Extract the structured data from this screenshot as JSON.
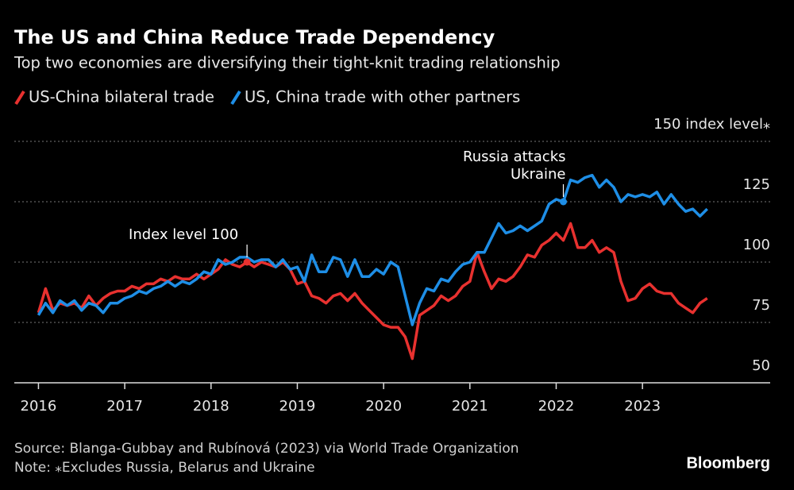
{
  "chart_data": {
    "type": "line",
    "title": "The US and China Reduce Trade Dependency",
    "subtitle": "Top two economies are diversifying their tight-knit trading relationship",
    "x": [
      2016,
      2016.083,
      2016.167,
      2016.25,
      2016.333,
      2016.417,
      2016.5,
      2016.583,
      2016.667,
      2016.75,
      2016.833,
      2016.917,
      2017,
      2017.083,
      2017.167,
      2017.25,
      2017.333,
      2017.417,
      2017.5,
      2017.583,
      2017.667,
      2017.75,
      2017.833,
      2017.917,
      2018,
      2018.083,
      2018.167,
      2018.25,
      2018.333,
      2018.417,
      2018.5,
      2018.583,
      2018.667,
      2018.75,
      2018.833,
      2018.917,
      2019,
      2019.083,
      2019.167,
      2019.25,
      2019.333,
      2019.417,
      2019.5,
      2019.583,
      2019.667,
      2019.75,
      2019.833,
      2019.917,
      2020,
      2020.083,
      2020.167,
      2020.25,
      2020.333,
      2020.417,
      2020.5,
      2020.583,
      2020.667,
      2020.75,
      2020.833,
      2020.917,
      2021,
      2021.083,
      2021.167,
      2021.25,
      2021.333,
      2021.417,
      2021.5,
      2021.583,
      2021.667,
      2021.75,
      2021.833,
      2021.917,
      2022,
      2022.083,
      2022.167,
      2022.25,
      2022.333,
      2022.417,
      2022.5,
      2022.583,
      2022.667,
      2022.75,
      2022.833,
      2022.917,
      2023,
      2023.083,
      2023.167,
      2023.25,
      2023.333,
      2023.417,
      2023.5,
      2023.583,
      2023.667,
      2023.75
    ],
    "series": [
      {
        "name": "US-China bilateral trade",
        "color": "#e8312f",
        "values": [
          79,
          89,
          80,
          83,
          82,
          83,
          81,
          86,
          82,
          85,
          87,
          88,
          88,
          90,
          89,
          91,
          91,
          93,
          92,
          94,
          93,
          93,
          95,
          93,
          95,
          97,
          101,
          99,
          98,
          100,
          98,
          100,
          99,
          98,
          100,
          97,
          91,
          92,
          86,
          85,
          83,
          86,
          87,
          84,
          87,
          83,
          80,
          77,
          74,
          73,
          73,
          69,
          60,
          78,
          80,
          82,
          86,
          84,
          86,
          90,
          92,
          104,
          96,
          89,
          93,
          92,
          94,
          98,
          103,
          102,
          107,
          109,
          112,
          109,
          116,
          106,
          106,
          109,
          104,
          106,
          104,
          92,
          84,
          85,
          89,
          91,
          88,
          87,
          87,
          83,
          81,
          79,
          83,
          85
        ]
      },
      {
        "name": "US, China trade with other partners",
        "color": "#1e8ee6",
        "values": [
          78,
          83,
          79,
          84,
          82,
          84,
          80,
          83,
          82,
          79,
          83,
          83,
          85,
          86,
          88,
          87,
          89,
          90,
          92,
          90,
          92,
          91,
          93,
          96,
          95,
          101,
          99,
          100,
          102,
          102,
          100,
          101,
          101,
          98,
          101,
          97,
          98,
          92,
          103,
          96,
          96,
          102,
          101,
          94,
          101,
          94,
          94,
          97,
          95,
          100,
          98,
          86,
          74,
          83,
          89,
          88,
          93,
          92,
          96,
          99,
          100,
          104,
          104,
          110,
          116,
          112,
          113,
          115,
          113,
          115,
          117,
          124,
          126,
          125,
          134,
          133,
          135,
          136,
          131,
          134,
          131,
          125,
          128,
          127,
          128,
          127,
          129,
          124,
          128,
          124,
          121,
          122,
          119,
          122
        ]
      }
    ],
    "xlim": [
      2015.72,
      2024.48
    ],
    "xticks": [
      2016,
      2017,
      2018,
      2019,
      2020,
      2021,
      2022,
      2023
    ],
    "ylim": [
      50,
      150
    ],
    "yticks": [
      50,
      75,
      100,
      125,
      {
        "value": 150,
        "label": "150 index level⁎"
      }
    ],
    "grid": true,
    "annotations": [
      {
        "text": [
          "Index level 100"
        ],
        "x": 2018.417,
        "series": 0
      },
      {
        "text": [
          "Russia attacks",
          "Ukraine"
        ],
        "x": 2022.083,
        "series": 1
      }
    ],
    "source": "Source: Blanga-Gubbay and Rubínová (2023) via World Trade Organization",
    "note": "Note: ⁎Excludes Russia, Belarus and Ukraine",
    "logo": "Bloomberg"
  }
}
